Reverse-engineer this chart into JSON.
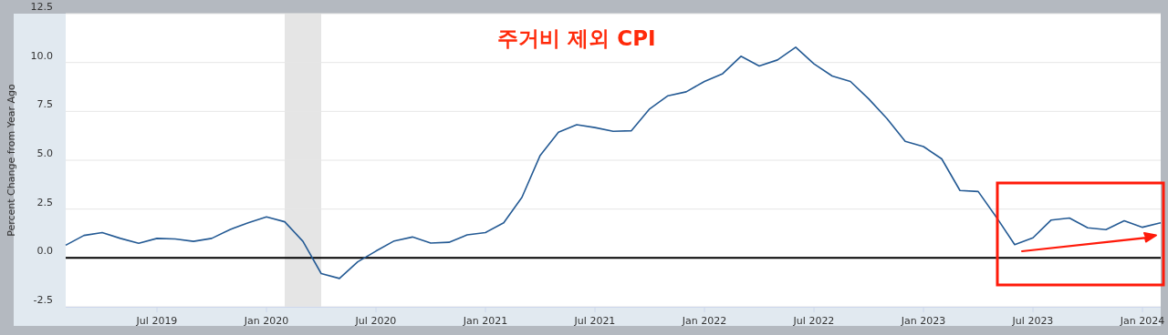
{
  "chart_data": {
    "type": "line",
    "title": "주거비 제외 CPI",
    "ylabel": "Percent Change from Year Ago",
    "x": [
      "2019-02",
      "2019-03",
      "2019-04",
      "2019-05",
      "2019-06",
      "2019-07",
      "2019-08",
      "2019-09",
      "2019-10",
      "2019-11",
      "2019-12",
      "2020-01",
      "2020-02",
      "2020-03",
      "2020-04",
      "2020-05",
      "2020-06",
      "2020-07",
      "2020-08",
      "2020-09",
      "2020-10",
      "2020-11",
      "2020-12",
      "2021-01",
      "2021-02",
      "2021-03",
      "2021-04",
      "2021-05",
      "2021-06",
      "2021-07",
      "2021-08",
      "2021-09",
      "2021-10",
      "2021-11",
      "2021-12",
      "2022-01",
      "2022-02",
      "2022-03",
      "2022-04",
      "2022-05",
      "2022-06",
      "2022-07",
      "2022-08",
      "2022-09",
      "2022-10",
      "2022-11",
      "2022-12",
      "2023-01",
      "2023-02",
      "2023-03",
      "2023-04",
      "2023-05",
      "2023-06",
      "2023-07",
      "2023-08",
      "2023-09",
      "2023-10",
      "2023-11",
      "2023-12",
      "2024-01",
      "2024-02"
    ],
    "series": [
      {
        "color": "#245a94",
        "values": [
          0.65,
          1.15,
          1.3,
          1.0,
          0.75,
          1.0,
          0.97,
          0.85,
          1.0,
          1.45,
          1.8,
          2.1,
          1.85,
          0.85,
          -0.8,
          -1.05,
          -0.2,
          0.35,
          0.87,
          1.07,
          0.76,
          0.8,
          1.18,
          1.3,
          1.8,
          3.1,
          5.25,
          6.43,
          6.82,
          6.67,
          6.48,
          6.51,
          7.63,
          8.3,
          8.5,
          9.03,
          9.43,
          10.32,
          9.82,
          10.13,
          10.78,
          9.93,
          9.31,
          9.03,
          8.14,
          7.13,
          5.97,
          5.7,
          5.07,
          3.45,
          3.4,
          2.08,
          0.68,
          1.03,
          1.94,
          2.04,
          1.54,
          1.45,
          1.9,
          1.57,
          1.8
        ]
      }
    ],
    "xlim": [
      "2019-02",
      "2024-02"
    ],
    "ylim": [
      -2.5,
      12.5
    ],
    "xticks": [
      {
        "value": "2019-07",
        "label": "Jul 2019"
      },
      {
        "value": "2020-01",
        "label": "Jan 2020"
      },
      {
        "value": "2020-07",
        "label": "Jul 2020"
      },
      {
        "value": "2021-01",
        "label": "Jan 2021"
      },
      {
        "value": "2021-07",
        "label": "Jul 2021"
      },
      {
        "value": "2022-01",
        "label": "Jan 2022"
      },
      {
        "value": "2022-07",
        "label": "Jul 2022"
      },
      {
        "value": "2023-01",
        "label": "Jan 2023"
      },
      {
        "value": "2023-07",
        "label": "Jul 2023"
      },
      {
        "value": "2024-01",
        "label": "Jan 2024"
      }
    ],
    "yticks": [
      -2.5,
      {
        "value": 0,
        "label": "0.0"
      },
      2.5,
      {
        "value": 5,
        "label": "5.0"
      },
      7.5,
      {
        "value": 10,
        "label": "10.0"
      },
      12.5
    ],
    "grid": "y",
    "ref_lines": [
      {
        "axis": "y",
        "value": 0,
        "color": "#000000"
      }
    ],
    "bands": [
      {
        "axis": "x",
        "from": "2020-02",
        "to": "2020-04",
        "color": "#e5e5e5"
      }
    ]
  }
}
